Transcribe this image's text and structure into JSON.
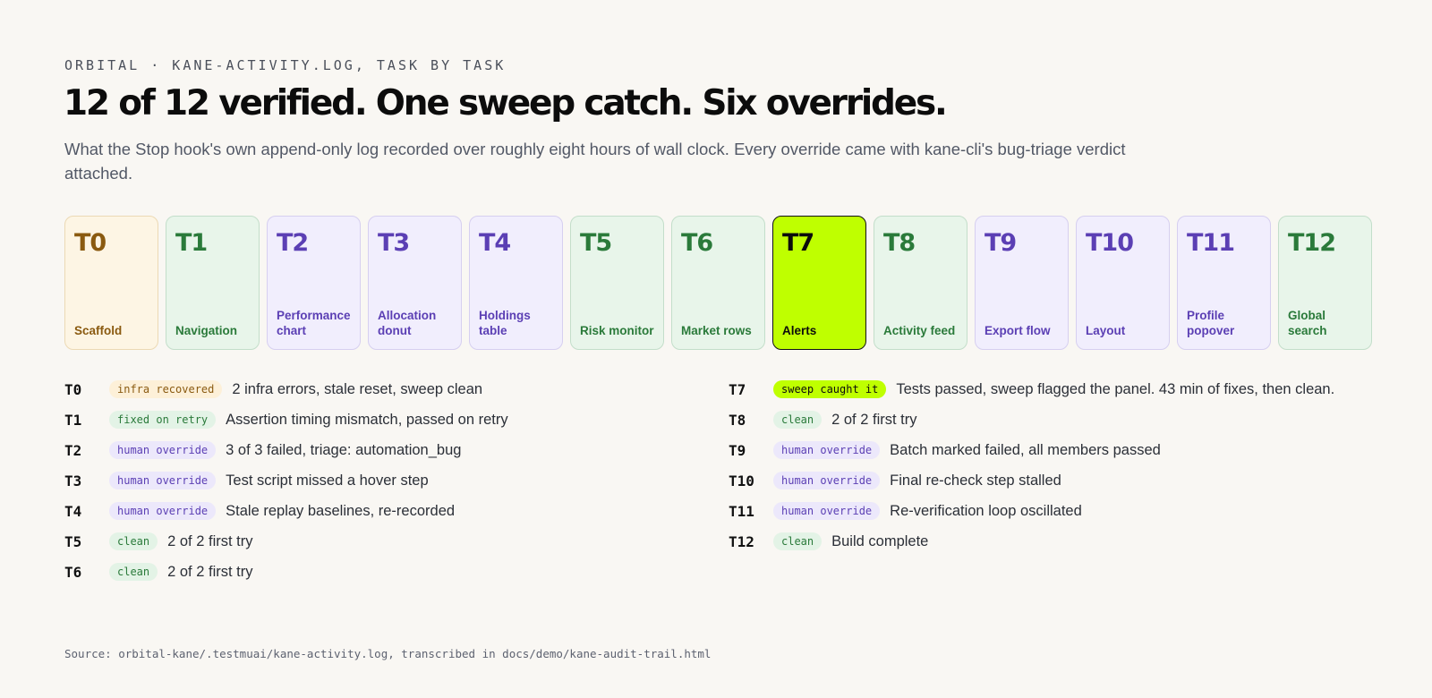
{
  "eyebrow": "ORBITAL · KANE-ACTIVITY.LOG, TASK BY TASK",
  "headline": "12 of 12 verified. One sweep catch. Six overrides.",
  "subtitle": "What the Stop hook's own append-only log recorded over roughly eight hours of wall clock. Every override came with kane-cli's bug-triage verdict attached.",
  "colors": {
    "background": "#f9f7f3",
    "amber": "#8a5a10",
    "green": "#2a7a3a",
    "purple": "#5b3fb4",
    "lime": "#bfff00"
  },
  "cards": [
    {
      "code": "T0",
      "label": "Scaffold",
      "tone": "amber"
    },
    {
      "code": "T1",
      "label": "Navigation",
      "tone": "green"
    },
    {
      "code": "T2",
      "label": "Performance chart",
      "tone": "purple"
    },
    {
      "code": "T3",
      "label": "Allocation donut",
      "tone": "purple"
    },
    {
      "code": "T4",
      "label": "Holdings table",
      "tone": "purple"
    },
    {
      "code": "T5",
      "label": "Risk monitor",
      "tone": "green"
    },
    {
      "code": "T6",
      "label": "Market rows",
      "tone": "green"
    },
    {
      "code": "T7",
      "label": "Alerts",
      "tone": "lime"
    },
    {
      "code": "T8",
      "label": "Activity feed",
      "tone": "green"
    },
    {
      "code": "T9",
      "label": "Export flow",
      "tone": "purple"
    },
    {
      "code": "T10",
      "label": "Layout",
      "tone": "purple"
    },
    {
      "code": "T11",
      "label": "Profile popover",
      "tone": "purple"
    },
    {
      "code": "T12",
      "label": "Global search",
      "tone": "green"
    }
  ],
  "rows_left": [
    {
      "id": "T0",
      "badge": "infra recovered",
      "tone": "amber",
      "desc": "2 infra errors, stale reset, sweep clean"
    },
    {
      "id": "T1",
      "badge": "fixed on retry",
      "tone": "green",
      "desc": "Assertion timing mismatch, passed on retry"
    },
    {
      "id": "T2",
      "badge": "human override",
      "tone": "purple",
      "desc": "3 of 3 failed, triage: automation_bug"
    },
    {
      "id": "T3",
      "badge": "human override",
      "tone": "purple",
      "desc": "Test script missed a hover step"
    },
    {
      "id": "T4",
      "badge": "human override",
      "tone": "purple",
      "desc": "Stale replay baselines, re-recorded"
    },
    {
      "id": "T5",
      "badge": "clean",
      "tone": "green",
      "desc": "2 of 2 first try"
    },
    {
      "id": "T6",
      "badge": "clean",
      "tone": "green",
      "desc": "2 of 2 first try"
    }
  ],
  "rows_right": [
    {
      "id": "T7",
      "badge": "sweep caught it",
      "tone": "lime",
      "desc": "Tests passed, sweep flagged the panel. 43 min of fixes, then clean."
    },
    {
      "id": "T8",
      "badge": "clean",
      "tone": "green",
      "desc": "2 of 2 first try"
    },
    {
      "id": "T9",
      "badge": "human override",
      "tone": "purple",
      "desc": "Batch marked failed, all members passed"
    },
    {
      "id": "T10",
      "badge": "human override",
      "tone": "purple",
      "desc": "Final re-check step stalled"
    },
    {
      "id": "T11",
      "badge": "human override",
      "tone": "purple",
      "desc": "Re-verification loop oscillated"
    },
    {
      "id": "T12",
      "badge": "clean",
      "tone": "green",
      "desc": "Build complete"
    }
  ],
  "source": "Source: orbital-kane/.testmuai/kane-activity.log, transcribed in docs/demo/kane-audit-trail.html"
}
